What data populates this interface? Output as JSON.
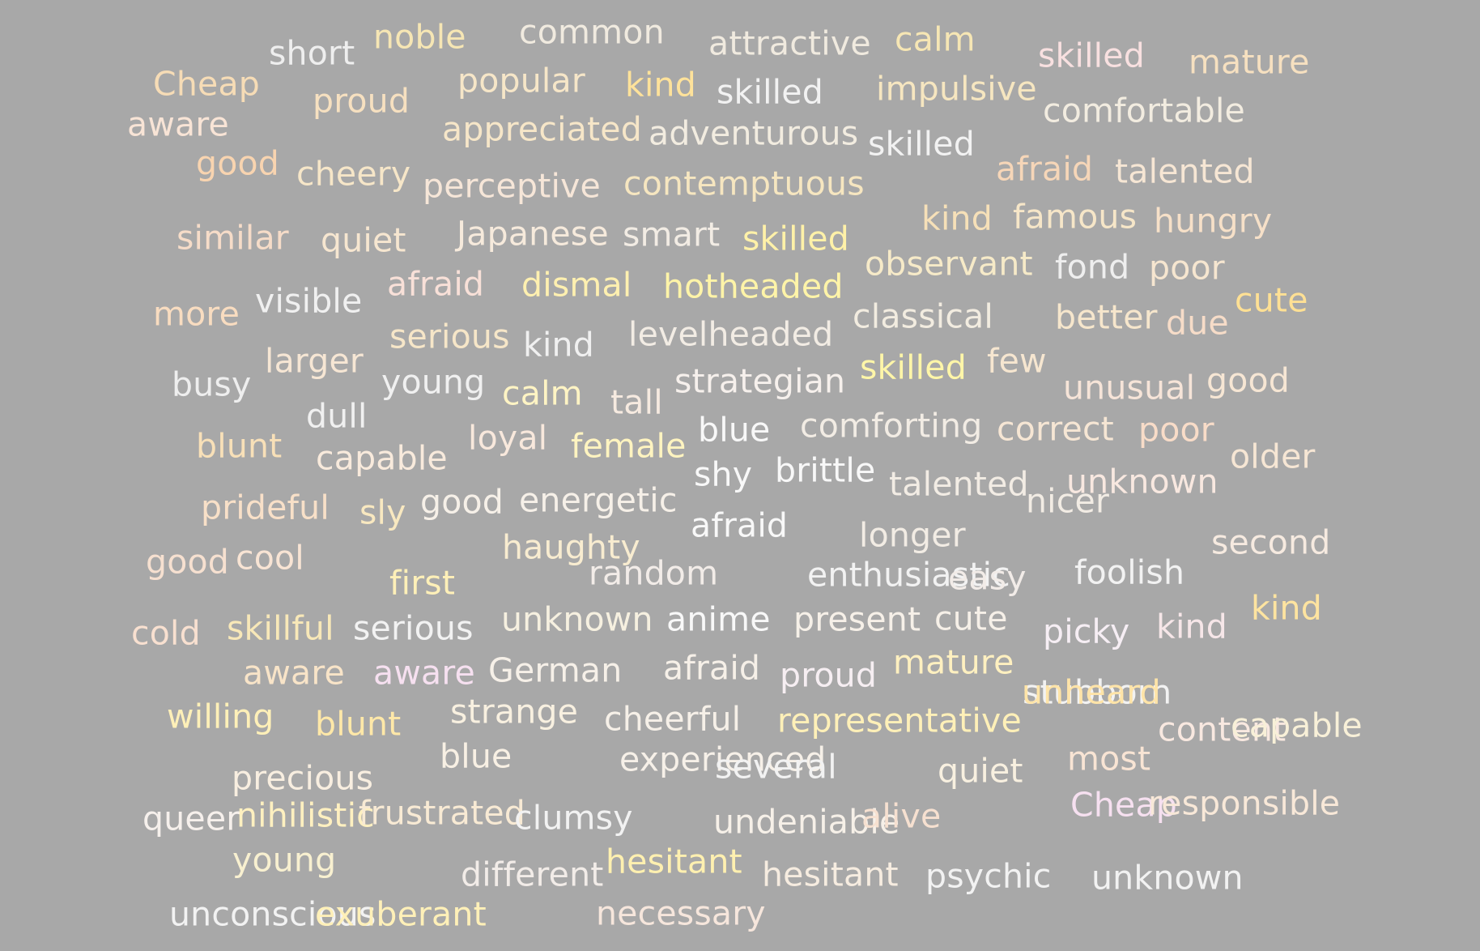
{
  "colors": {
    "background": "#a8a8a8",
    "palette": [
      "#f5deb3",
      "#f0f0f0",
      "#ffe4b5",
      "#fff1a8",
      "#f8e4d6",
      "#f3e6f3",
      "#ffd6b0"
    ]
  },
  "words": [
    {
      "text": "short",
      "color": "#eeeeee"
    },
    {
      "text": "noble",
      "color": "#f6e6b4"
    },
    {
      "text": "common",
      "color": "#f0eadf"
    },
    {
      "text": "attractive",
      "color": "#f0eadf"
    },
    {
      "text": "calm",
      "color": "#f6e6b4"
    },
    {
      "text": "skilled",
      "color": "#f8e0e0"
    },
    {
      "text": "mature",
      "color": "#f6e0c0"
    },
    {
      "text": "Cheap",
      "color": "#f6dcb6"
    },
    {
      "text": "popular",
      "color": "#f6e6c8"
    },
    {
      "text": "kind",
      "color": "#ffe29a"
    },
    {
      "text": "skilled",
      "color": "#f2f2f2"
    },
    {
      "text": "impulsive",
      "color": "#f6e6c0"
    },
    {
      "text": "proud",
      "color": "#f6e0c0"
    },
    {
      "text": "aware",
      "color": "#f8e4d6"
    },
    {
      "text": "comfortable",
      "color": "#f2ece0"
    },
    {
      "text": "appreciated",
      "color": "#f6e6c8"
    },
    {
      "text": "adventurous",
      "color": "#f2ece0"
    },
    {
      "text": "skilled",
      "color": "#f2f2f2"
    },
    {
      "text": "good",
      "color": "#f8d4b0"
    },
    {
      "text": "cheery",
      "color": "#f6e6c8"
    },
    {
      "text": "perceptive",
      "color": "#f6e6d8"
    },
    {
      "text": "contemptuous",
      "color": "#f6e6c0"
    },
    {
      "text": "afraid",
      "color": "#f6d6b8"
    },
    {
      "text": "talented",
      "color": "#f6e6d4"
    },
    {
      "text": "similar",
      "color": "#f6dcc8"
    },
    {
      "text": "quiet",
      "color": "#f6e6d0"
    },
    {
      "text": "Japanese",
      "color": "#f6eadc"
    },
    {
      "text": "smart",
      "color": "#f2ece4"
    },
    {
      "text": "skilled",
      "color": "#fff1a8"
    },
    {
      "text": "kind",
      "color": "#f6e0b8"
    },
    {
      "text": "famous",
      "color": "#f6e6c8"
    },
    {
      "text": "hungry",
      "color": "#f6e0c8"
    },
    {
      "text": "observant",
      "color": "#f6eac8"
    },
    {
      "text": "fond",
      "color": "#eeeeee"
    },
    {
      "text": "poor",
      "color": "#f6e6d0"
    },
    {
      "text": "more",
      "color": "#f8dcc0"
    },
    {
      "text": "visible",
      "color": "#f0f0f0"
    },
    {
      "text": "afraid",
      "color": "#f8e0d8"
    },
    {
      "text": "dismal",
      "color": "#fff0b0"
    },
    {
      "text": "hotheaded",
      "color": "#fff4a8"
    },
    {
      "text": "classical",
      "color": "#f2ece0"
    },
    {
      "text": "better",
      "color": "#f6e6cc"
    },
    {
      "text": "due",
      "color": "#f6dcc8"
    },
    {
      "text": "cute",
      "color": "#ffe094"
    },
    {
      "text": "serious",
      "color": "#f6e6c8"
    },
    {
      "text": "kind",
      "color": "#f0f0f0"
    },
    {
      "text": "levelheaded",
      "color": "#f2ece4"
    },
    {
      "text": "busy",
      "color": "#eeeeee"
    },
    {
      "text": "larger",
      "color": "#f6e6d4"
    },
    {
      "text": "young",
      "color": "#f0f0f0"
    },
    {
      "text": "calm",
      "color": "#fff4c4"
    },
    {
      "text": "tall",
      "color": "#f6eae0"
    },
    {
      "text": "strategian",
      "color": "#f6f0ec"
    },
    {
      "text": "skilled",
      "color": "#fff6a8"
    },
    {
      "text": "few",
      "color": "#f6e6d0"
    },
    {
      "text": "unusual",
      "color": "#f6e4d8"
    },
    {
      "text": "good",
      "color": "#f6e6d4"
    },
    {
      "text": "dull",
      "color": "#f0f0f0"
    },
    {
      "text": "blunt",
      "color": "#f8e0b8"
    },
    {
      "text": "capable",
      "color": "#f8eadc"
    },
    {
      "text": "loyal",
      "color": "#f8e8dc"
    },
    {
      "text": "female",
      "color": "#fff4c0"
    },
    {
      "text": "blue",
      "color": "#f8f8f8"
    },
    {
      "text": "comforting",
      "color": "#f2ece4"
    },
    {
      "text": "correct",
      "color": "#f6e6d4"
    },
    {
      "text": "poor",
      "color": "#f8dcc8"
    },
    {
      "text": "older",
      "color": "#f6e6d4"
    },
    {
      "text": "shy",
      "color": "#f8f8f8"
    },
    {
      "text": "brittle",
      "color": "#f8f8f8"
    },
    {
      "text": "talented",
      "color": "#f2ece4"
    },
    {
      "text": "unknown",
      "color": "#f8e8e0"
    },
    {
      "text": "prideful",
      "color": "#f8e0c8"
    },
    {
      "text": "sly",
      "color": "#f8e8c0"
    },
    {
      "text": "good",
      "color": "#f6f0e8"
    },
    {
      "text": "energetic",
      "color": "#f6f0e8"
    },
    {
      "text": "afraid",
      "color": "#f8f8f8"
    },
    {
      "text": "longer",
      "color": "#f2ece4"
    },
    {
      "text": "nicer",
      "color": "#f2ece4"
    },
    {
      "text": "good",
      "color": "#f6e0d0"
    },
    {
      "text": "cool",
      "color": "#f8e4d4"
    },
    {
      "text": "haughty",
      "color": "#f8ecd0"
    },
    {
      "text": "first",
      "color": "#fff0b8"
    },
    {
      "text": "random",
      "color": "#f2ece8"
    },
    {
      "text": "enthusiastic",
      "color": "#f2f2f2"
    },
    {
      "text": "easy",
      "color": "#f2ece8"
    },
    {
      "text": "foolish",
      "color": "#f2f2f2"
    },
    {
      "text": "second",
      "color": "#f6eae0"
    },
    {
      "text": "kind",
      "color": "#ffe4a0"
    },
    {
      "text": "cold",
      "color": "#f8e0d0"
    },
    {
      "text": "skillful",
      "color": "#f8e8b8"
    },
    {
      "text": "serious",
      "color": "#f2f2f2"
    },
    {
      "text": "unknown",
      "color": "#f6f0e0"
    },
    {
      "text": "anime",
      "color": "#f8f8f8"
    },
    {
      "text": "present",
      "color": "#f6f0e8"
    },
    {
      "text": "cute",
      "color": "#f6f0e8"
    },
    {
      "text": "picky",
      "color": "#f6eef4"
    },
    {
      "text": "kind",
      "color": "#f6e6e8"
    },
    {
      "text": "aware",
      "color": "#f8e4c8"
    },
    {
      "text": "aware",
      "color": "#f6e0f0"
    },
    {
      "text": "German",
      "color": "#f6f0e8"
    },
    {
      "text": "afraid",
      "color": "#f6f0e8"
    },
    {
      "text": "proud",
      "color": "#f6eef2"
    },
    {
      "text": "mature",
      "color": "#fff0c0"
    },
    {
      "text": "stubborn",
      "color": "#f2f2f2"
    },
    {
      "text": "willing",
      "color": "#fff0b8"
    },
    {
      "text": "blunt",
      "color": "#ffe8a8"
    },
    {
      "text": "strange",
      "color": "#f8f0e0"
    },
    {
      "text": "cheerful",
      "color": "#f6f0e8"
    },
    {
      "text": "representative",
      "color": "#fff0b8"
    },
    {
      "text": "unheard",
      "color": "#ffe4a8"
    },
    {
      "text": "content",
      "color": "#f8e8e0"
    },
    {
      "text": "precious",
      "color": "#f8eee0"
    },
    {
      "text": "blue",
      "color": "#f8f0e4"
    },
    {
      "text": "experienced",
      "color": "#f6f0e8"
    },
    {
      "text": "several",
      "color": "#f2f2f2"
    },
    {
      "text": "quiet",
      "color": "#f8f0e0"
    },
    {
      "text": "most",
      "color": "#f8e4d4"
    },
    {
      "text": "queer",
      "color": "#f6f0ec"
    },
    {
      "text": "nihilistic",
      "color": "#fff0c0"
    },
    {
      "text": "frustrated",
      "color": "#f8ead4"
    },
    {
      "text": "clumsy",
      "color": "#f2f2f2"
    },
    {
      "text": "undeniable",
      "color": "#f6f0e8"
    },
    {
      "text": "alive",
      "color": "#f6e0d0"
    },
    {
      "text": "Cheap",
      "color": "#f6e0f0"
    },
    {
      "text": "responsible",
      "color": "#f8e8d8"
    },
    {
      "text": "capable",
      "color": "#f8f0d8"
    },
    {
      "text": "young",
      "color": "#f8f0d0"
    },
    {
      "text": "different",
      "color": "#f2ece8"
    },
    {
      "text": "hesitant",
      "color": "#fff0b0"
    },
    {
      "text": "hesitant",
      "color": "#f6ece0"
    },
    {
      "text": "psychic",
      "color": "#f2f2f2"
    },
    {
      "text": "unknown",
      "color": "#f2f2f2"
    },
    {
      "text": "unconscious",
      "color": "#f2f2f2"
    },
    {
      "text": "exuberant",
      "color": "#fff0b8"
    },
    {
      "text": "necessary",
      "color": "#f6e6dc"
    }
  ]
}
